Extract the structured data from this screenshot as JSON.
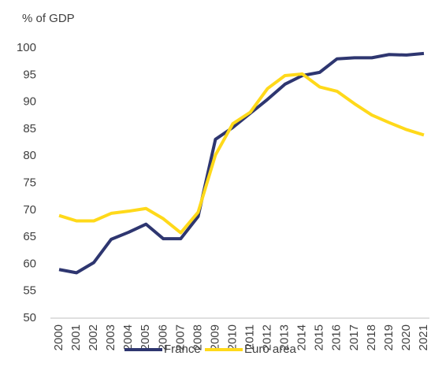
{
  "chart_data": {
    "type": "line",
    "y_label": "% of GDP",
    "categories": [
      "2000",
      "2001",
      "2002",
      "2003",
      "2004",
      "2005",
      "2006",
      "2007",
      "2008",
      "2009",
      "2010",
      "2011",
      "2012",
      "2013",
      "2014",
      "2015",
      "2016",
      "2017",
      "2018",
      "2019",
      "2020",
      "2021"
    ],
    "series": [
      {
        "name": "France",
        "color": "#2e3670",
        "values": [
          59.0,
          58.4,
          60.3,
          64.6,
          65.9,
          67.4,
          64.7,
          64.7,
          68.8,
          83.1,
          85.3,
          87.9,
          90.5,
          93.3,
          94.9,
          95.5,
          98.0,
          98.2,
          98.2,
          98.8,
          98.7,
          99.0
        ]
      },
      {
        "name": "Euro area",
        "color": "#ffd91a",
        "values": [
          69.0,
          68.0,
          68.0,
          69.4,
          69.8,
          70.3,
          68.4,
          65.8,
          69.6,
          80.2,
          86.0,
          88.1,
          92.5,
          94.9,
          95.2,
          92.8,
          92.0,
          89.7,
          87.6,
          86.2,
          84.9,
          83.9
        ]
      }
    ],
    "ylim": [
      50,
      100
    ],
    "yticks": [
      50,
      55,
      60,
      65,
      70,
      75,
      80,
      85,
      90,
      95,
      100
    ],
    "grid": false,
    "legend": "bottom"
  }
}
